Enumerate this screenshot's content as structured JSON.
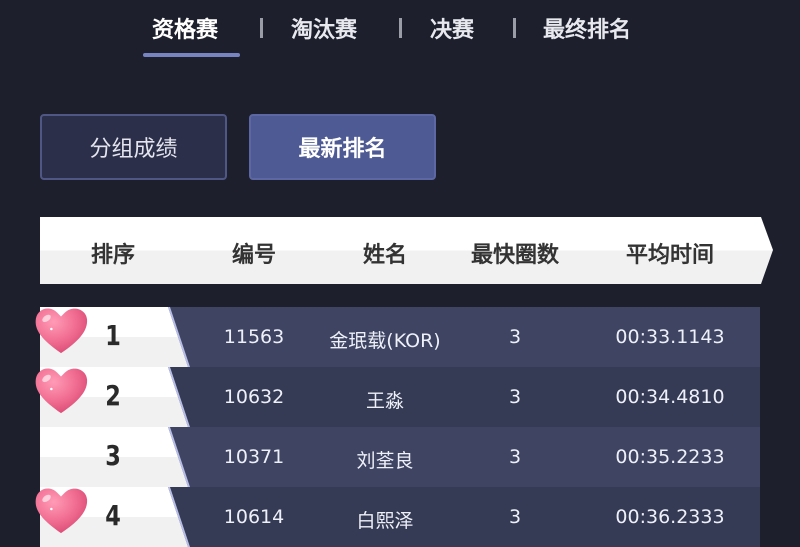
{
  "tabs": [
    {
      "label": "资格赛",
      "active": true
    },
    {
      "label": "淘汰赛"
    },
    {
      "label": "决赛"
    },
    {
      "label": "最终排名"
    }
  ],
  "buttons": {
    "group_results": "分组成绩",
    "latest_ranking": "最新排名"
  },
  "table": {
    "headers": [
      "排序",
      "编号",
      "姓名",
      "最快圈数",
      "平均时间"
    ],
    "rows": [
      {
        "rank": "1",
        "id": "11563",
        "name": "金珉载(KOR)",
        "laps": "3",
        "avg_time": "00:33.1143",
        "heart": true
      },
      {
        "rank": "2",
        "id": "10632",
        "name": "王淼",
        "laps": "3",
        "avg_time": "00:34.4810",
        "heart": true
      },
      {
        "rank": "3",
        "id": "10371",
        "name": "刘荃良",
        "laps": "3",
        "avg_time": "00:35.2233",
        "heart": false
      },
      {
        "rank": "4",
        "id": "10614",
        "name": "白熙泽",
        "laps": "3",
        "avg_time": "00:36.2333",
        "heart": true
      }
    ]
  },
  "colors": {
    "background": "#1d202c",
    "accent": "#7884c2",
    "row_odd": "#3e4462",
    "row_even": "#353a55",
    "heart": "#f06b90"
  }
}
